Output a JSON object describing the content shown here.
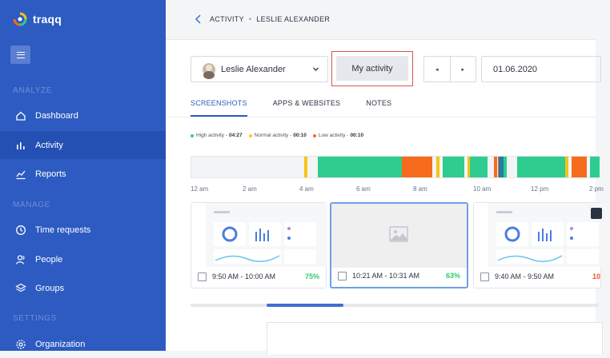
{
  "app": {
    "name": "traqq"
  },
  "sidebar": {
    "sections": [
      {
        "label": "ANALYZE"
      },
      {
        "label": "MANAGE"
      },
      {
        "label": "SETTINGS"
      }
    ],
    "items": [
      {
        "label": "Dashboard",
        "icon": "home-icon"
      },
      {
        "label": "Activity",
        "icon": "bar-chart-icon",
        "active": true
      },
      {
        "label": "Reports",
        "icon": "reports-icon"
      },
      {
        "label": "Time requests",
        "icon": "clock-icon"
      },
      {
        "label": "People",
        "icon": "people-icon"
      },
      {
        "label": "Groups",
        "icon": "layers-icon"
      },
      {
        "label": "Organization",
        "icon": "gear-icon"
      }
    ]
  },
  "breadcrumb": {
    "parent": "ACTIVITY",
    "current": "LESLIE ALEXANDER"
  },
  "toolbar": {
    "user": "Leslie Alexander",
    "my_activity": "My activity",
    "prev": "◂",
    "next": "▸",
    "date": "01.06.2020"
  },
  "tabs": [
    {
      "label": "SCREENSHOTS",
      "active": true
    },
    {
      "label": "APPS & WEBSITES"
    },
    {
      "label": "NOTES"
    }
  ],
  "legend": [
    {
      "label": "High activity -",
      "value": "04:27",
      "color": "#2ecc8e"
    },
    {
      "label": "Normal activity -",
      "value": "00:10",
      "color": "#f5c518"
    },
    {
      "label": "Low activity -",
      "value": "00:10",
      "color": "#f76b1c"
    }
  ],
  "timeline": {
    "ticks": [
      "12 am",
      "2 am",
      "4 am",
      "6 am",
      "8 am",
      "10 am",
      "12 pm",
      "2 pm"
    ],
    "colors": {
      "high": "#2ecc8e",
      "normal": "#f5c518",
      "low": "#f76b1c",
      "marker": "#1f7fa6"
    }
  },
  "screenshots": [
    {
      "time": "9:50 AM - 10:00 AM",
      "percent": "75%",
      "percent_color": "#2ecc71"
    },
    {
      "time": "10:21 AM - 10:31 AM",
      "percent": "63%",
      "percent_color": "#2ecc71",
      "selected": true
    },
    {
      "time": "9:40 AM - 9:50 AM",
      "percent": "10",
      "percent_color": "#f0522c"
    }
  ]
}
